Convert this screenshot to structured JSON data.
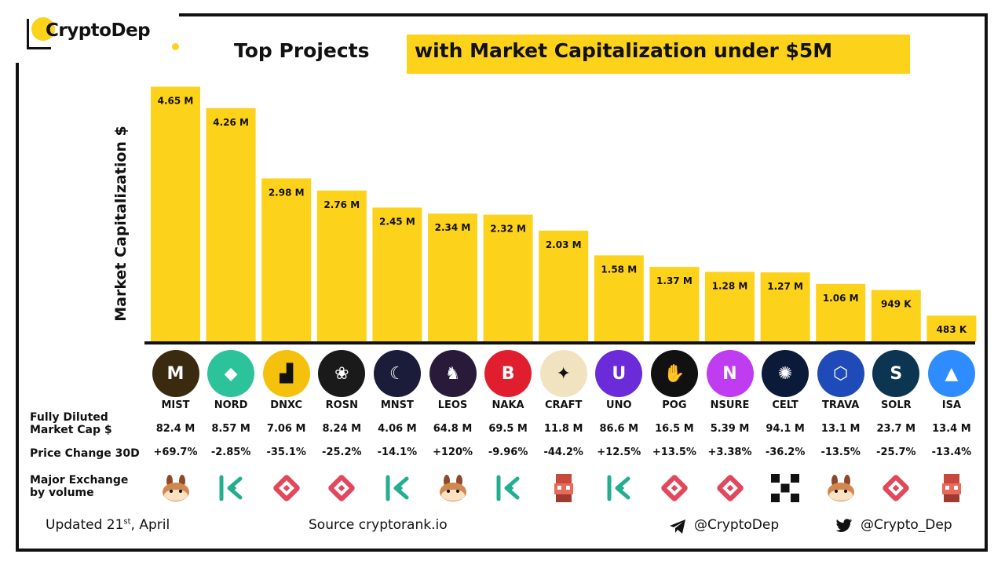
{
  "brand": {
    "name": "CryptoDep",
    "logo_accent": "#fdd21a"
  },
  "title": {
    "plain": "Top Projects",
    "highlight": "with Market Capitalization under $5M"
  },
  "colors": {
    "bar": "#fdd21a",
    "frame": "#111111"
  },
  "chart_data": {
    "type": "bar",
    "categories": [
      "MIST",
      "NORD",
      "DNXC",
      "ROSN",
      "MNST",
      "LEOS",
      "NAKA",
      "CRAFT",
      "UNO",
      "POG",
      "NSURE",
      "CELT",
      "TRAVA",
      "SOLR",
      "ISA"
    ],
    "values": [
      4.65,
      4.26,
      2.98,
      2.76,
      2.45,
      2.34,
      2.32,
      2.03,
      1.58,
      1.37,
      1.28,
      1.27,
      1.06,
      0.949,
      0.483
    ],
    "value_labels": [
      "4.65 M",
      "4.26 M",
      "2.98 M",
      "2.76 M",
      "2.45 M",
      "2.34 M",
      "2.32 M",
      "2.03 M",
      "1.58 M",
      "1.37 M",
      "1.28 M",
      "1.27 M",
      "1.06 M",
      "949 K",
      "483 K"
    ],
    "ylabel": "Market Capitalization  $",
    "ylim": [
      0,
      4.8
    ],
    "grid": false,
    "title": "Top Projects with Market Capitalization under $5M"
  },
  "rows": {
    "fdv_label_line1": "Fully Diluted",
    "fdv_label_line2": "Market Cap $",
    "price_label": "Price Change 30D",
    "exchange_label_line1": "Major Exchange",
    "exchange_label_line2": "by volume"
  },
  "projects": [
    {
      "ticker": "MIST",
      "fdv": "82.4 M",
      "change": "+69.7%",
      "exchange": "pancakeswap-icon",
      "logo_icon": "mist-logo-icon",
      "logo_color": "#3a2a10",
      "logo_glyph": "M"
    },
    {
      "ticker": "NORD",
      "fdv": "8.57 M",
      "change": "-2.85%",
      "exchange": "kucoin-icon",
      "logo_icon": "nord-logo-icon",
      "logo_color": "#2cc39a",
      "logo_glyph": "◆"
    },
    {
      "ticker": "DNXC",
      "fdv": "7.06 M",
      "change": "-35.1%",
      "exchange": "gate-icon",
      "logo_icon": "dnxc-logo-icon",
      "logo_color": "#f4c20d",
      "logo_glyph": "▟"
    },
    {
      "ticker": "ROSN",
      "fdv": "8.24 M",
      "change": "-25.2%",
      "exchange": "gate-icon",
      "logo_icon": "rosn-logo-icon",
      "logo_color": "#1a1a1a",
      "logo_glyph": "❀"
    },
    {
      "ticker": "MNST",
      "fdv": "4.06 M",
      "change": "-14.1%",
      "exchange": "kucoin-icon",
      "logo_icon": "mnst-logo-icon",
      "logo_color": "#1b1b3a",
      "logo_glyph": "☾"
    },
    {
      "ticker": "LEOS",
      "fdv": "64.8 M",
      "change": "+120%",
      "exchange": "pancakeswap-icon",
      "logo_icon": "leos-logo-icon",
      "logo_color": "#2a1a3a",
      "logo_glyph": "♞"
    },
    {
      "ticker": "NAKA",
      "fdv": "69.5 M",
      "change": "-9.96%",
      "exchange": "kucoin-icon",
      "logo_icon": "naka-logo-icon",
      "logo_color": "#e01e2e",
      "logo_glyph": "B"
    },
    {
      "ticker": "CRAFT",
      "fdv": "11.8 M",
      "change": "-44.2%",
      "exchange": "mexc-icon",
      "logo_icon": "craft-logo-icon",
      "logo_color": "#f2e3c0",
      "logo_glyph": "✦"
    },
    {
      "ticker": "UNO",
      "fdv": "86.6 M",
      "change": "+12.5%",
      "exchange": "kucoin-icon",
      "logo_icon": "uno-logo-icon",
      "logo_color": "#6b2bd9",
      "logo_glyph": "U"
    },
    {
      "ticker": "POG",
      "fdv": "16.5 M",
      "change": "+13.5%",
      "exchange": "gate-icon",
      "logo_icon": "pog-logo-icon",
      "logo_color": "#111111",
      "logo_glyph": "✋"
    },
    {
      "ticker": "NSURE",
      "fdv": "5.39 M",
      "change": "+3.38%",
      "exchange": "gate-icon",
      "logo_icon": "nsure-logo-icon",
      "logo_color": "#c03cf0",
      "logo_glyph": "N"
    },
    {
      "ticker": "CELT",
      "fdv": "94.1 M",
      "change": "-36.2%",
      "exchange": "okx-icon",
      "logo_icon": "celt-logo-icon",
      "logo_color": "#0c1a3a",
      "logo_glyph": "✺"
    },
    {
      "ticker": "TRAVA",
      "fdv": "13.1 M",
      "change": "-13.5%",
      "exchange": "pancakeswap-icon",
      "logo_icon": "trava-logo-icon",
      "logo_color": "#1f4bb8",
      "logo_glyph": "⬡"
    },
    {
      "ticker": "SOLR",
      "fdv": "23.7 M",
      "change": "-25.7%",
      "exchange": "gate-icon",
      "logo_icon": "solr-logo-icon",
      "logo_color": "#0b3550",
      "logo_glyph": "S"
    },
    {
      "ticker": "ISA",
      "fdv": "13.4 M",
      "change": "-13.4%",
      "exchange": "mexc-icon",
      "logo_icon": "isa-logo-icon",
      "logo_color": "#2f8cff",
      "logo_glyph": "▲"
    }
  ],
  "footer": {
    "updated_prefix": "Updated 21",
    "updated_sup": "st",
    "updated_suffix": ", April",
    "source": "Source  cryptorank.io",
    "telegram": "@CryptoDep",
    "twitter": "@Crypto_Dep"
  }
}
